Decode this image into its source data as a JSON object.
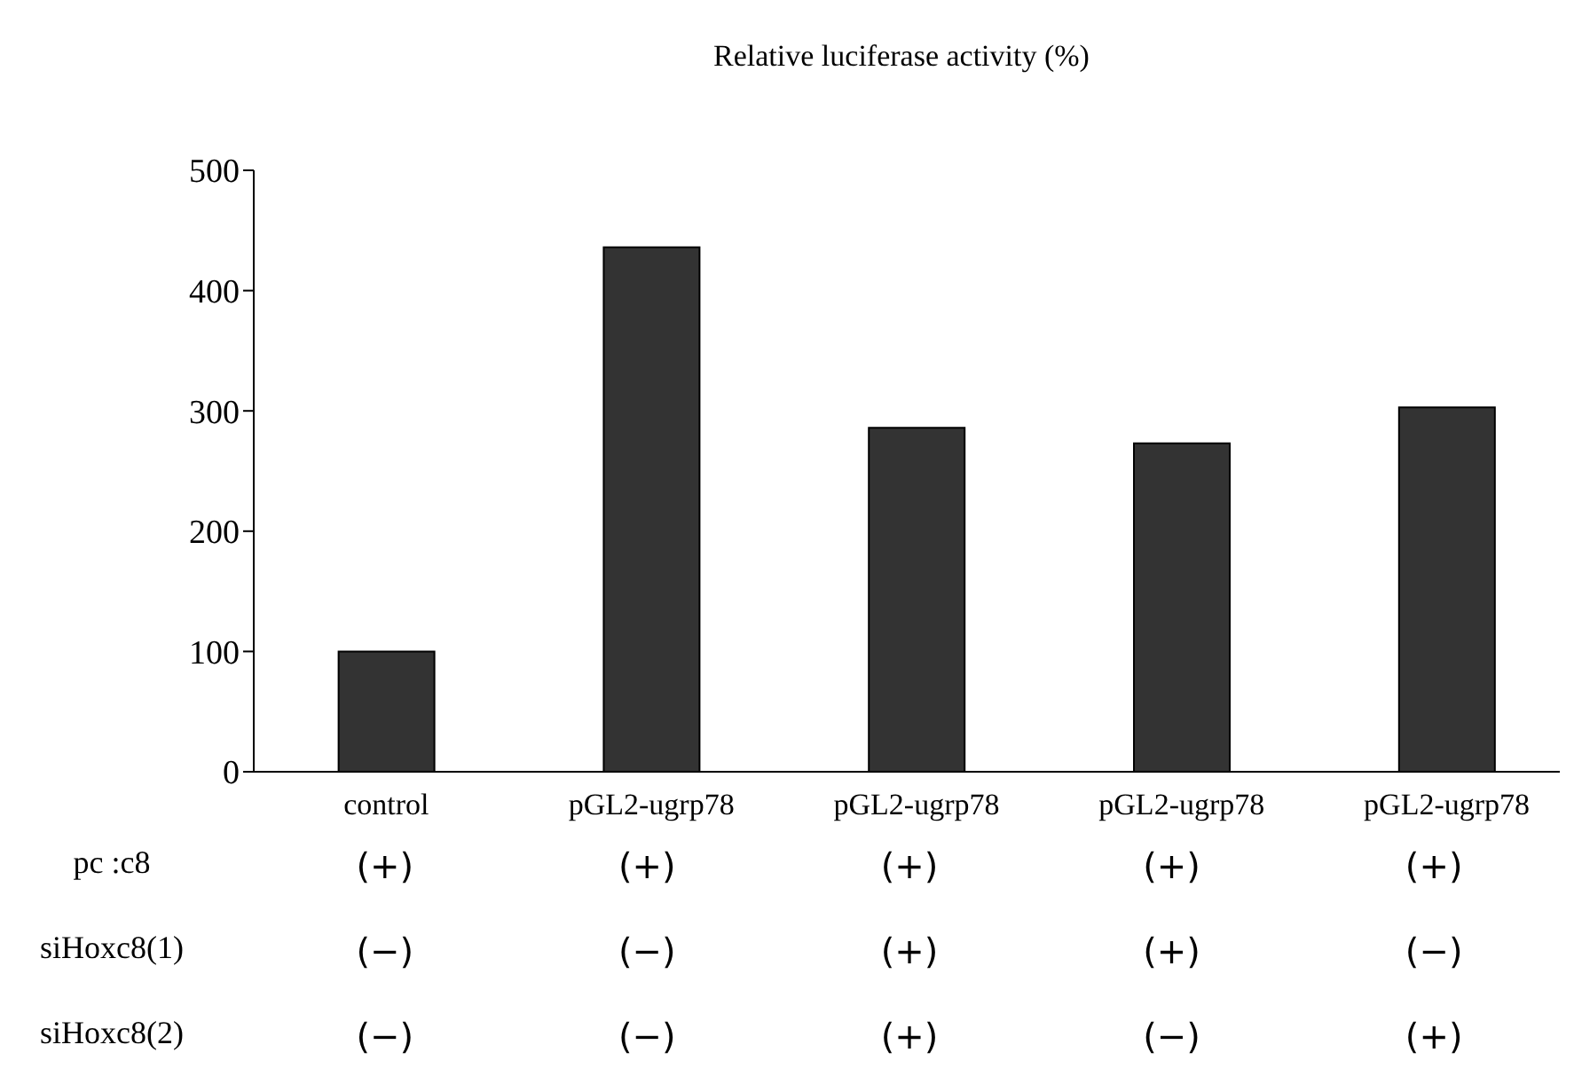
{
  "chart_data": {
    "type": "bar",
    "title": "Relative luciferase activity  (%)",
    "categories": [
      "control",
      "pGL2-ugrp78",
      "pGL2-ugrp78",
      "pGL2-ugrp78",
      "pGL2-ugrp78"
    ],
    "values": [
      100,
      436,
      286,
      273,
      303
    ],
    "color": "#333333",
    "ylim": [
      0,
      500
    ],
    "yticks": [
      0,
      100,
      200,
      300,
      400,
      500
    ],
    "grid": false,
    "legend": false,
    "annotations": [
      "pc  :c8",
      "(+)",
      "(+)",
      "(+)",
      "(+)",
      "(+)",
      "siHoxc8(1)",
      "(−)",
      "(−)",
      "(+)",
      "(+)",
      "(−)",
      "siHoxc8(2)",
      "(−)",
      "(−)",
      "(+)",
      "(−)",
      "(+)"
    ]
  }
}
